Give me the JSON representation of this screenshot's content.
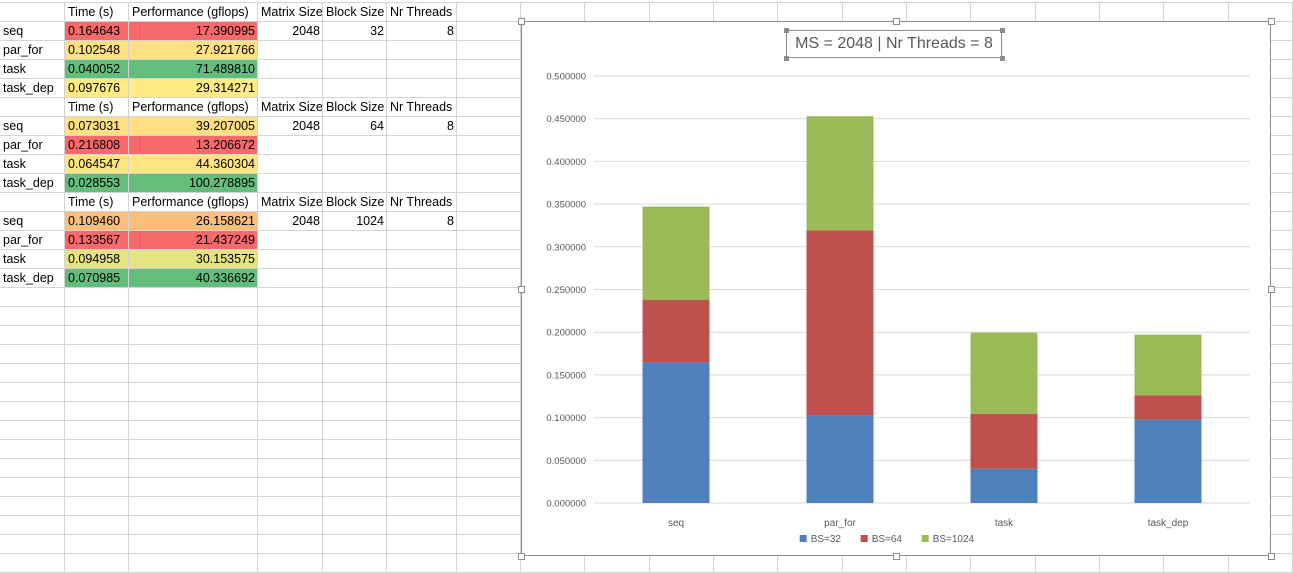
{
  "table": {
    "headers": [
      "Time (s)",
      "Performance (gflops)",
      "Matrix Size",
      "Block Size",
      "Nr Threads"
    ],
    "groups": [
      {
        "rows": [
          {
            "name": "seq",
            "time": "0.164643",
            "perf": "17.390995",
            "time_color": "#f8696b",
            "perf_color": "#f8696b"
          },
          {
            "name": "par_for",
            "time": "0.102548",
            "perf": "27.921766",
            "time_color": "#fde283",
            "perf_color": "#fde283"
          },
          {
            "name": "task",
            "time": "0.040052",
            "perf": "71.489810",
            "time_color": "#63be7b",
            "perf_color": "#63be7b"
          },
          {
            "name": "task_dep",
            "time": "0.097676",
            "perf": "29.314271",
            "time_color": "#ffeb84",
            "perf_color": "#ffeb84"
          }
        ],
        "matrix_size": "2048",
        "block_size": "32",
        "nr_threads": "8"
      },
      {
        "rows": [
          {
            "name": "seq",
            "time": "0.073031",
            "perf": "39.207005",
            "time_color": "#ffe082",
            "perf_color": "#ffe082"
          },
          {
            "name": "par_for",
            "time": "0.216808",
            "perf": "13.206672",
            "time_color": "#f8696b",
            "perf_color": "#f8696b"
          },
          {
            "name": "task",
            "time": "0.064547",
            "perf": "44.360304",
            "time_color": "#fee683",
            "perf_color": "#fee683"
          },
          {
            "name": "task_dep",
            "time": "0.028553",
            "perf": "100.278895",
            "time_color": "#63be7b",
            "perf_color": "#63be7b"
          }
        ],
        "matrix_size": "2048",
        "block_size": "64",
        "nr_threads": "8"
      },
      {
        "rows": [
          {
            "name": "seq",
            "time": "0.109460",
            "perf": "26.158621",
            "time_color": "#fcbf7b",
            "perf_color": "#fcbf7b"
          },
          {
            "name": "par_for",
            "time": "0.133567",
            "perf": "21.437249",
            "time_color": "#f8696b",
            "perf_color": "#f8696b"
          },
          {
            "name": "task",
            "time": "0.094958",
            "perf": "30.153575",
            "time_color": "#e7e282",
            "perf_color": "#e7e282"
          },
          {
            "name": "task_dep",
            "time": "0.070985",
            "perf": "40.336692",
            "time_color": "#63be7b",
            "perf_color": "#63be7b"
          }
        ],
        "matrix_size": "2048",
        "block_size": "1024",
        "nr_threads": "8"
      }
    ]
  },
  "chart_data": {
    "type": "bar",
    "stacked": true,
    "title": "MS = 2048 | Nr Threads = 8",
    "categories": [
      "seq",
      "par_for",
      "task",
      "task_dep"
    ],
    "series": [
      {
        "name": "BS=32",
        "color": "#4f81bd",
        "values": [
          0.164643,
          0.102548,
          0.040052,
          0.097676
        ]
      },
      {
        "name": "BS=64",
        "color": "#c0504d",
        "values": [
          0.073031,
          0.216808,
          0.064547,
          0.028553
        ]
      },
      {
        "name": "BS=1024",
        "color": "#9bbb59",
        "values": [
          0.10946,
          0.133567,
          0.094958,
          0.070985
        ]
      }
    ],
    "ylim": [
      0,
      0.5
    ],
    "yticks": [
      "0.000000",
      "0.050000",
      "0.100000",
      "0.150000",
      "0.200000",
      "0.250000",
      "0.300000",
      "0.350000",
      "0.400000",
      "0.450000",
      "0.500000"
    ],
    "grid": true,
    "legend_position": "bottom"
  }
}
